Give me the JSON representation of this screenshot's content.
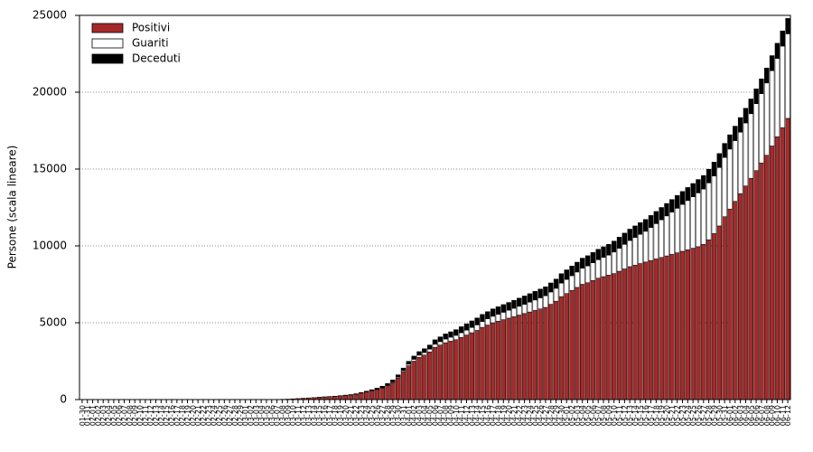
{
  "chart_data": {
    "type": "stacked_bar",
    "ylabel": "Persone (scala lineare)",
    "ylim": [
      0,
      25000
    ],
    "yticks": [
      0,
      5000,
      10000,
      15000,
      20000,
      25000
    ],
    "grid": true,
    "legend": "upper left",
    "categories": [
      "01-30",
      "01-31",
      "02-01",
      "02-02",
      "02-03",
      "02-04",
      "02-05",
      "02-06",
      "02-07",
      "02-08",
      "02-09",
      "02-10",
      "02-11",
      "02-12",
      "02-13",
      "02-14",
      "02-15",
      "02-16",
      "02-17",
      "02-18",
      "02-19",
      "02-20",
      "02-21",
      "02-22",
      "02-23",
      "02-24",
      "02-25",
      "02-26",
      "02-27",
      "02-28",
      "02-29",
      "03-01",
      "03-02",
      "03-03",
      "03-04",
      "03-05",
      "03-06",
      "03-07",
      "03-08",
      "03-09",
      "03-10",
      "03-11",
      "03-12",
      "03-13",
      "03-14",
      "03-15",
      "03-16",
      "03-17",
      "03-18",
      "03-19",
      "03-20",
      "03-21",
      "03-22",
      "03-23",
      "03-24",
      "03-25",
      "03-26",
      "03-27",
      "03-28",
      "03-29",
      "03-30",
      "03-31",
      "04-01",
      "04-02",
      "04-03",
      "04-04",
      "04-05",
      "04-06",
      "04-07",
      "04-08",
      "04-09",
      "04-10",
      "04-11",
      "04-12",
      "04-13",
      "04-14",
      "04-15",
      "04-16",
      "04-17",
      "04-18",
      "04-19",
      "04-20",
      "04-21",
      "04-22",
      "04-23",
      "04-24",
      "04-25",
      "04-26",
      "04-27",
      "04-28",
      "04-29",
      "04-30",
      "05-01",
      "05-02",
      "05-03",
      "05-04",
      "05-05",
      "05-06",
      "05-07",
      "05-08",
      "05-09",
      "05-10",
      "05-11",
      "05-12",
      "05-13",
      "05-14",
      "05-15",
      "05-16",
      "05-17",
      "05-18",
      "05-19",
      "05-20",
      "05-21",
      "05-22",
      "05-23",
      "05-24",
      "05-25",
      "05-26",
      "05-27",
      "05-28",
      "05-29",
      "05-30",
      "05-31",
      "06-01",
      "06-02",
      "06-03",
      "06-04",
      "06-05",
      "06-06",
      "06-07",
      "06-08",
      "06-09",
      "06-10",
      "06-11",
      "06-12"
    ],
    "series": [
      {
        "name": "Positivi",
        "color": "#a52a2a",
        "values": [
          0,
          0,
          0,
          0,
          0,
          0,
          0,
          0,
          0,
          0,
          0,
          0,
          0,
          0,
          0,
          0,
          0,
          0,
          0,
          0,
          0,
          0,
          0,
          0,
          0,
          0,
          0,
          0,
          0,
          0,
          0,
          0,
          0,
          0,
          0,
          0,
          5,
          10,
          20,
          30,
          50,
          70,
          90,
          110,
          130,
          150,
          170,
          190,
          210,
          240,
          270,
          300,
          350,
          420,
          500,
          580,
          650,
          750,
          900,
          1100,
          1400,
          1800,
          2200,
          2500,
          2750,
          2900,
          3100,
          3400,
          3550,
          3700,
          3800,
          3900,
          4050,
          4200,
          4350,
          4500,
          4700,
          4850,
          5000,
          5100,
          5200,
          5300,
          5400,
          5500,
          5600,
          5700,
          5800,
          5900,
          6000,
          6200,
          6400,
          6700,
          6900,
          7100,
          7300,
          7500,
          7600,
          7750,
          7900,
          8000,
          8100,
          8200,
          8350,
          8500,
          8650,
          8750,
          8850,
          8950,
          9050,
          9150,
          9250,
          9350,
          9450,
          9550,
          9650,
          9750,
          9850,
          9950,
          10100,
          10400,
          10800,
          11300,
          11900,
          12400,
          12900,
          13400,
          13900,
          14400,
          14900,
          15400,
          15900,
          16500,
          17100,
          17700,
          18300
        ]
      },
      {
        "name": "Guariti",
        "color": "#ffffff",
        "values": [
          0,
          0,
          0,
          0,
          0,
          0,
          0,
          0,
          0,
          0,
          0,
          0,
          0,
          0,
          0,
          0,
          0,
          0,
          0,
          0,
          0,
          0,
          0,
          0,
          0,
          0,
          0,
          0,
          0,
          0,
          0,
          0,
          0,
          0,
          0,
          0,
          0,
          0,
          0,
          0,
          0,
          0,
          0,
          0,
          0,
          0,
          0,
          0,
          0,
          0,
          0,
          0,
          0,
          0,
          0,
          0,
          20,
          30,
          40,
          50,
          60,
          80,
          100,
          120,
          140,
          160,
          180,
          200,
          220,
          240,
          260,
          280,
          300,
          320,
          340,
          360,
          380,
          400,
          420,
          450,
          480,
          510,
          540,
          570,
          600,
          640,
          680,
          720,
          760,
          800,
          840,
          880,
          920,
          960,
          1000,
          1050,
          1100,
          1150,
          1200,
          1250,
          1300,
          1400,
          1500,
          1600,
          1700,
          1800,
          1900,
          2000,
          2150,
          2300,
          2450,
          2600,
          2750,
          2900,
          3050,
          3200,
          3350,
          3500,
          3600,
          3700,
          3750,
          3800,
          3850,
          3900,
          3950,
          4000,
          4100,
          4200,
          4350,
          4500,
          4700,
          4900,
          5100,
          5300,
          5500
        ]
      },
      {
        "name": "Deceduti",
        "color": "#000000",
        "values": [
          0,
          0,
          0,
          0,
          0,
          0,
          0,
          0,
          0,
          0,
          0,
          0,
          0,
          0,
          0,
          0,
          0,
          0,
          0,
          0,
          0,
          0,
          0,
          0,
          0,
          0,
          0,
          0,
          0,
          0,
          0,
          0,
          0,
          0,
          0,
          0,
          0,
          0,
          0,
          0,
          0,
          0,
          0,
          0,
          0,
          5,
          8,
          10,
          12,
          15,
          20,
          25,
          30,
          40,
          50,
          60,
          75,
          90,
          110,
          130,
          150,
          170,
          190,
          210,
          230,
          250,
          270,
          290,
          310,
          330,
          350,
          370,
          390,
          410,
          430,
          450,
          460,
          470,
          480,
          490,
          500,
          510,
          520,
          530,
          540,
          550,
          560,
          570,
          580,
          590,
          600,
          610,
          620,
          630,
          640,
          650,
          660,
          670,
          680,
          690,
          700,
          710,
          720,
          730,
          740,
          750,
          760,
          770,
          780,
          790,
          800,
          810,
          820,
          830,
          840,
          850,
          860,
          870,
          880,
          890,
          900,
          910,
          920,
          930,
          940,
          950,
          955,
          960,
          965,
          970,
          975,
          980,
          985,
          990,
          1000
        ]
      }
    ]
  }
}
